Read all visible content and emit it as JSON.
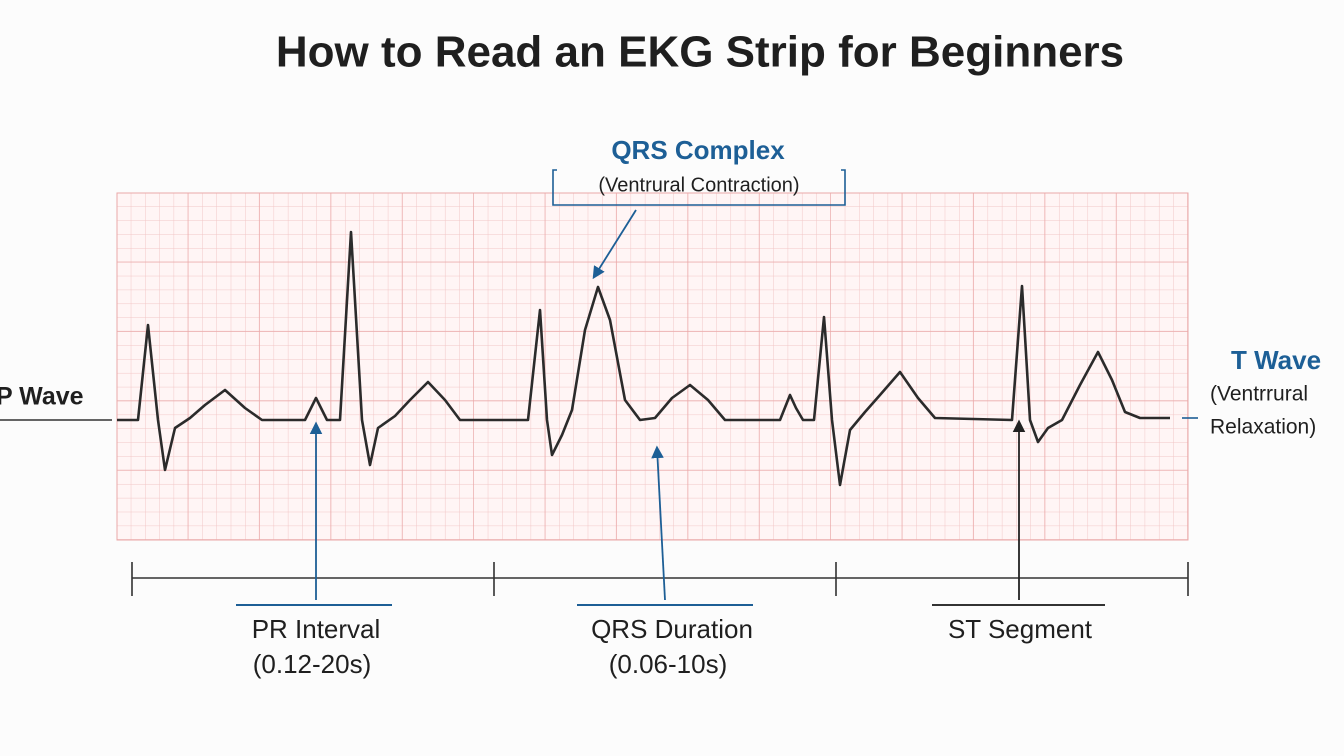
{
  "title": "How to Read an EKG Strip for Beginners",
  "qrs_complex": {
    "label": "QRS Complex",
    "note": "(Ventrural Contraction)"
  },
  "p_wave": {
    "label": "P Wave"
  },
  "t_wave": {
    "label": "T Wave",
    "note_lines": [
      "(Ventrrural",
      "Relaxation)"
    ]
  },
  "intervals": [
    {
      "label": "PR Interval",
      "range": "(0.12-20s)"
    },
    {
      "label": "QRS Duration",
      "range": "(0.06-10s)"
    },
    {
      "label": "ST Segment"
    }
  ]
}
